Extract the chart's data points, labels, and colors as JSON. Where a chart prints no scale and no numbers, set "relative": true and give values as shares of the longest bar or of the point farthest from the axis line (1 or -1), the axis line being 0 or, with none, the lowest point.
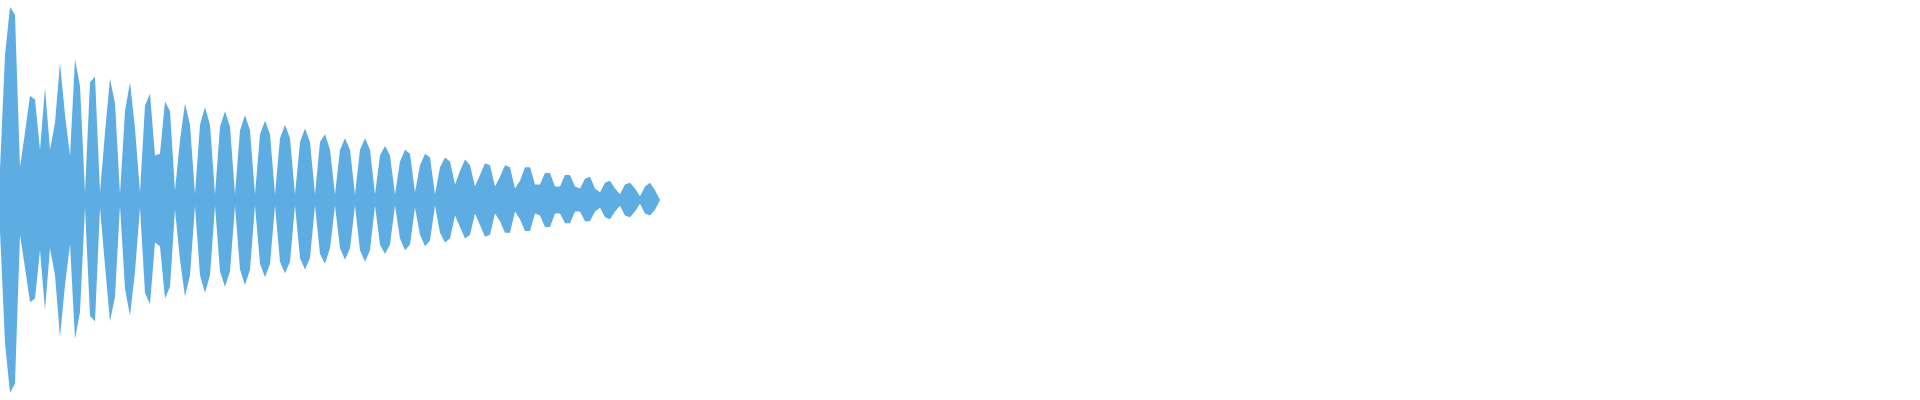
{
  "chart_data": {
    "type": "area",
    "relative": true,
    "categories": [
      null,
      null,
      null,
      null,
      null,
      null,
      null,
      null,
      null,
      null,
      null,
      null,
      null,
      null,
      null,
      null,
      null,
      null,
      null,
      null,
      null,
      null,
      null,
      null,
      null,
      null,
      null,
      null,
      null,
      null,
      null,
      null,
      null,
      null,
      null,
      null,
      null,
      null,
      null,
      null,
      null,
      null,
      null,
      null,
      null,
      null,
      null,
      null,
      null,
      null,
      null,
      null,
      null,
      null,
      null,
      null,
      null,
      null,
      null,
      null,
      null,
      null,
      null,
      null,
      null,
      null,
      null,
      null,
      null,
      null,
      null,
      null,
      null,
      null,
      null,
      null,
      null,
      null,
      null,
      null,
      null,
      null,
      null,
      null,
      null,
      null,
      null,
      null,
      null,
      null,
      null,
      null,
      null,
      null,
      null,
      null,
      null,
      null,
      null,
      null,
      null,
      null,
      null,
      null,
      null,
      null,
      null,
      null,
      null,
      null,
      null,
      null,
      null,
      null,
      null,
      null,
      null,
      null,
      null,
      null,
      null,
      null,
      null,
      null,
      null,
      null,
      null,
      null,
      null,
      null,
      null,
      null,
      null
    ],
    "series": [
      {
        "color": "#5dade2",
        "values": [
          0.16,
          0.75,
          1,
          0.96,
          0.17,
          0.35,
          0.54,
          0.52,
          0.26,
          0.58,
          0.26,
          0.4,
          0.71,
          0.44,
          0.23,
          0.73,
          0.59,
          0.04,
          0.61,
          0.64,
          0.04,
          0.35,
          0.63,
          0.5,
          0.03,
          0.46,
          0.61,
          0.37,
          0.04,
          0.49,
          0.55,
          0.23,
          0.24,
          0.51,
          0.46,
          0.05,
          0.31,
          0.5,
          0.39,
          0.03,
          0.39,
          0.48,
          0.39,
          0.03,
          0.38,
          0.46,
          0.38,
          0.03,
          0.36,
          0.44,
          0.36,
          0.03,
          0.34,
          0.41,
          0.34,
          0.03,
          0.32,
          0.39,
          0.32,
          0.03,
          0.3,
          0.37,
          0.3,
          0.03,
          0.3,
          0.34,
          0.26,
          0.03,
          0.26,
          0.32,
          0.26,
          0.03,
          0.26,
          0.32,
          0.26,
          0.03,
          0.23,
          0.28,
          0.23,
          0.03,
          0.2,
          0.26,
          0.24,
          0.04,
          0.18,
          0.24,
          0.22,
          0.03,
          0.17,
          0.22,
          0.2,
          0.08,
          0.15,
          0.21,
          0.18,
          0.07,
          0.13,
          0.19,
          0.18,
          0.07,
          0.12,
          0.18,
          0.17,
          0.06,
          0.1,
          0.17,
          0.17,
          0.08,
          0.08,
          0.14,
          0.14,
          0.07,
          0.07,
          0.13,
          0.13,
          0.07,
          0.06,
          0.11,
          0.12,
          0.06,
          0.04,
          0.09,
          0.1,
          0.06,
          0.03,
          0.08,
          0.09,
          0.06,
          0.02,
          0.07,
          0.09,
          0.05,
          0
        ]
      },
      {
        "color": "#5dade2",
        "values": [
          -0.16,
          -0.74,
          -1,
          -0.95,
          -0.18,
          -0.35,
          -0.53,
          -0.51,
          -0.26,
          -0.57,
          -0.25,
          -0.39,
          -0.71,
          -0.44,
          -0.23,
          -0.72,
          -0.58,
          -0.04,
          -0.6,
          -0.63,
          -0.04,
          -0.34,
          -0.63,
          -0.5,
          -0.03,
          -0.46,
          -0.6,
          -0.37,
          -0.04,
          -0.48,
          -0.54,
          -0.22,
          -0.24,
          -0.51,
          -0.45,
          -0.05,
          -0.31,
          -0.5,
          -0.39,
          -0.03,
          -0.39,
          -0.48,
          -0.39,
          -0.03,
          -0.37,
          -0.45,
          -0.37,
          -0.03,
          -0.36,
          -0.44,
          -0.36,
          -0.03,
          -0.33,
          -0.4,
          -0.33,
          -0.03,
          -0.32,
          -0.38,
          -0.32,
          -0.03,
          -0.3,
          -0.36,
          -0.3,
          -0.03,
          -0.28,
          -0.33,
          -0.25,
          -0.03,
          -0.25,
          -0.31,
          -0.25,
          -0.03,
          -0.26,
          -0.32,
          -0.26,
          -0.03,
          -0.23,
          -0.28,
          -0.23,
          -0.03,
          -0.2,
          -0.26,
          -0.23,
          -0.04,
          -0.18,
          -0.24,
          -0.21,
          -0.03,
          -0.17,
          -0.22,
          -0.2,
          -0.08,
          -0.14,
          -0.2,
          -0.18,
          -0.07,
          -0.13,
          -0.19,
          -0.18,
          -0.07,
          -0.11,
          -0.17,
          -0.17,
          -0.06,
          -0.1,
          -0.16,
          -0.16,
          -0.07,
          -0.08,
          -0.14,
          -0.14,
          -0.07,
          -0.07,
          -0.12,
          -0.12,
          -0.06,
          -0.06,
          -0.11,
          -0.11,
          -0.06,
          -0.04,
          -0.09,
          -0.1,
          -0.06,
          -0.03,
          -0.08,
          -0.09,
          -0.06,
          -0.02,
          -0.07,
          -0.08,
          -0.05,
          0
        ]
      }
    ]
  }
}
